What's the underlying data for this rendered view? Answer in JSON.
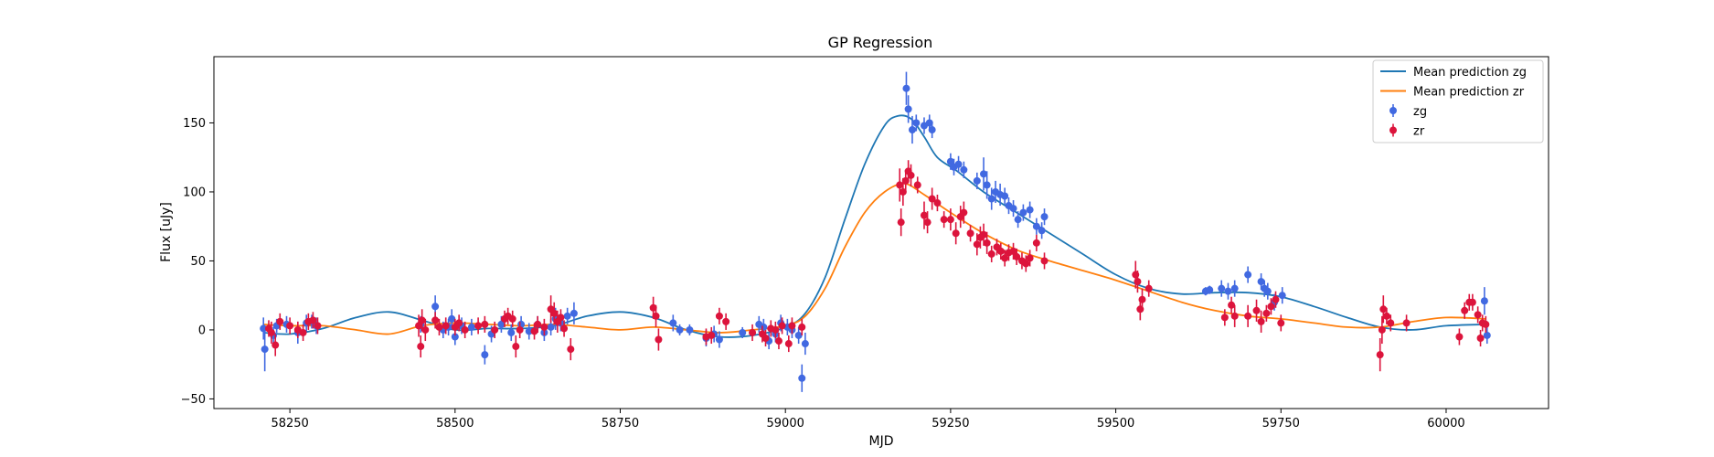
{
  "chart_data": {
    "type": "scatter",
    "title": "GP Regression",
    "xlabel": "MJD",
    "ylabel": "Flux [uJy]",
    "xlim": [
      58135,
      60155
    ],
    "ylim": [
      -57,
      198
    ],
    "xticks": [
      58250,
      58500,
      58750,
      59000,
      59250,
      59500,
      59750,
      60000
    ],
    "yticks": [
      -50,
      0,
      50,
      100,
      150
    ],
    "grid": false,
    "legend_position": "top-right",
    "legend": [
      "Mean prediction zg",
      "Mean prediction zr",
      "zg",
      "zr"
    ],
    "series": [
      {
        "name": "Mean prediction zg",
        "kind": "line",
        "color": "#1f77b4",
        "x": [
          58210,
          58250,
          58300,
          58350,
          58400,
          58450,
          58500,
          58550,
          58600,
          58650,
          58700,
          58750,
          58800,
          58850,
          58900,
          58950,
          59000,
          59030,
          59060,
          59090,
          59120,
          59150,
          59170,
          59190,
          59210,
          59230,
          59260,
          59300,
          59350,
          59400,
          59450,
          59500,
          59550,
          59600,
          59650,
          59700,
          59750,
          59800,
          59850,
          59900,
          59950,
          60000,
          60060
        ],
        "y": [
          -2,
          -3,
          1,
          9,
          13,
          7,
          0,
          1,
          1,
          3,
          10,
          13,
          9,
          0,
          -5,
          -4,
          2,
          12,
          38,
          80,
          120,
          148,
          155,
          153,
          140,
          125,
          115,
          100,
          85,
          70,
          55,
          40,
          30,
          26,
          27,
          27,
          24,
          17,
          9,
          2,
          0,
          3,
          4
        ]
      },
      {
        "name": "Mean prediction zr",
        "kind": "line",
        "color": "#ff7f0e",
        "x": [
          58210,
          58250,
          58300,
          58350,
          58400,
          58450,
          58500,
          58550,
          58600,
          58650,
          58700,
          58750,
          58800,
          58850,
          58900,
          58950,
          59000,
          59030,
          59060,
          59090,
          59120,
          59150,
          59180,
          59210,
          59250,
          59300,
          59350,
          59400,
          59450,
          59500,
          59550,
          59600,
          59650,
          59700,
          59750,
          59800,
          59850,
          59900,
          59950,
          60000,
          60060
        ],
        "y": [
          4,
          3,
          3,
          0,
          -3,
          3,
          5,
          4,
          3,
          4,
          2,
          0,
          2,
          0,
          -2,
          0,
          3,
          10,
          30,
          60,
          85,
          100,
          106,
          98,
          85,
          70,
          58,
          50,
          43,
          36,
          28,
          20,
          14,
          10,
          8,
          5,
          2,
          2,
          6,
          9,
          8
        ]
      },
      {
        "name": "zg",
        "kind": "errorbar",
        "color": "#4169e1",
        "x": [
          58210,
          58212,
          58225,
          58230,
          58245,
          58262,
          58275,
          58283,
          58290,
          58448,
          58470,
          58482,
          58490,
          58495,
          58500,
          58510,
          58525,
          58545,
          58555,
          58570,
          58585,
          58600,
          58612,
          58625,
          58635,
          58645,
          58652,
          58660,
          58670,
          58680,
          58830,
          58840,
          58855,
          58880,
          58892,
          58900,
          58935,
          58960,
          58967,
          58975,
          58985,
          58993,
          59003,
          59010,
          59020,
          59025,
          59030,
          59183,
          59186,
          59192,
          59198,
          59210,
          59218,
          59222,
          59250,
          59255,
          59262,
          59270,
          59290,
          59300,
          59305,
          59312,
          59318,
          59325,
          59332,
          59338,
          59345,
          59352,
          59360,
          59370,
          59380,
          59388,
          59392,
          59636,
          59642,
          59660,
          59670,
          59680,
          59700,
          59720,
          59725,
          59730,
          59740,
          59752,
          60058,
          60062
        ],
        "y": [
          1,
          -14,
          -4,
          3,
          4,
          -2,
          5,
          6,
          3,
          4,
          17,
          0,
          2,
          8,
          -5,
          3,
          2,
          -18,
          -3,
          4,
          -2,
          4,
          -1,
          4,
          -2,
          2,
          8,
          5,
          10,
          12,
          5,
          0,
          0,
          -6,
          -3,
          -7,
          -2,
          4,
          2,
          -8,
          -3,
          5,
          2,
          0,
          -4,
          -35,
          -10,
          175,
          160,
          145,
          150,
          148,
          150,
          145,
          122,
          118,
          120,
          116,
          108,
          113,
          105,
          95,
          100,
          98,
          97,
          90,
          88,
          80,
          85,
          87,
          75,
          72,
          82,
          28,
          29,
          30,
          28,
          30,
          40,
          35,
          30,
          28,
          20,
          25,
          21,
          -4
        ],
        "yerr": [
          8,
          16,
          6,
          5,
          6,
          8,
          6,
          5,
          6,
          6,
          8,
          6,
          6,
          7,
          6,
          6,
          6,
          7,
          6,
          6,
          6,
          6,
          6,
          6,
          6,
          6,
          8,
          6,
          6,
          8,
          6,
          4,
          4,
          6,
          6,
          6,
          4,
          6,
          6,
          6,
          6,
          6,
          6,
          6,
          6,
          10,
          8,
          12,
          10,
          10,
          6,
          6,
          6,
          6,
          6,
          6,
          6,
          6,
          6,
          12,
          10,
          8,
          8,
          8,
          6,
          6,
          6,
          6,
          6,
          6,
          6,
          6,
          6,
          3,
          3,
          6,
          6,
          6,
          6,
          6,
          6,
          6,
          6,
          6,
          10,
          6
        ]
      },
      {
        "name": "zr",
        "kind": "errorbar",
        "color": "#dc143c",
        "x": [
          58218,
          58222,
          58228,
          58235,
          58250,
          58262,
          58270,
          58278,
          58285,
          58292,
          58445,
          58448,
          58450,
          58455,
          58470,
          58476,
          58486,
          58500,
          58506,
          58515,
          58535,
          58545,
          58560,
          58575,
          58580,
          58587,
          58592,
          58598,
          58620,
          58625,
          58635,
          58645,
          58650,
          58655,
          58660,
          58665,
          58675,
          58800,
          58804,
          58808,
          58880,
          58888,
          58900,
          58910,
          58950,
          58965,
          58970,
          58978,
          58985,
          58990,
          58995,
          59005,
          59010,
          59025,
          59173,
          59175,
          59178,
          59182,
          59186,
          59190,
          59200,
          59210,
          59215,
          59222,
          59230,
          59240,
          59250,
          59258,
          59265,
          59270,
          59280,
          59290,
          59295,
          59300,
          59305,
          59312,
          59320,
          59326,
          59332,
          59338,
          59345,
          59350,
          59358,
          59364,
          59370,
          59380,
          59392,
          59530,
          59533,
          59537,
          59540,
          59550,
          59665,
          59675,
          59680,
          59700,
          59713,
          59720,
          59728,
          59735,
          59742,
          59750,
          59900,
          59903,
          59905,
          59910,
          59916,
          59940,
          60020,
          60028,
          60035,
          60040,
          60048,
          60052,
          60055,
          60060
        ],
        "y": [
          1,
          -2,
          -11,
          6,
          3,
          0,
          -2,
          6,
          7,
          3,
          3,
          -12,
          7,
          0,
          7,
          2,
          3,
          2,
          5,
          0,
          3,
          4,
          0,
          8,
          10,
          8,
          -12,
          0,
          -1,
          4,
          2,
          15,
          12,
          6,
          9,
          1,
          -14,
          16,
          10,
          -7,
          -5,
          -4,
          10,
          6,
          -2,
          -3,
          -6,
          1,
          0,
          -8,
          3,
          -10,
          3,
          2,
          105,
          78,
          100,
          108,
          115,
          112,
          105,
          83,
          78,
          95,
          92,
          80,
          80,
          70,
          82,
          85,
          70,
          62,
          67,
          69,
          63,
          55,
          60,
          57,
          52,
          56,
          57,
          53,
          50,
          48,
          52,
          63,
          50,
          40,
          35,
          15,
          22,
          30,
          9,
          18,
          10,
          10,
          14,
          6,
          12,
          17,
          22,
          5,
          -18,
          0,
          15,
          10,
          5,
          5,
          -5,
          14,
          20,
          20,
          11,
          -6,
          5,
          4
        ],
        "yerr": [
          6,
          8,
          8,
          6,
          6,
          6,
          6,
          6,
          6,
          6,
          8,
          8,
          8,
          8,
          6,
          6,
          6,
          6,
          6,
          6,
          6,
          6,
          6,
          6,
          6,
          6,
          8,
          6,
          6,
          6,
          6,
          10,
          8,
          8,
          6,
          6,
          8,
          8,
          8,
          8,
          6,
          6,
          6,
          6,
          6,
          6,
          6,
          6,
          6,
          6,
          6,
          6,
          6,
          6,
          12,
          10,
          10,
          8,
          8,
          8,
          6,
          10,
          8,
          8,
          6,
          6,
          8,
          8,
          8,
          8,
          6,
          8,
          8,
          8,
          8,
          6,
          6,
          6,
          6,
          6,
          6,
          6,
          6,
          6,
          6,
          6,
          6,
          10,
          8,
          8,
          8,
          6,
          6,
          6,
          8,
          8,
          8,
          8,
          6,
          6,
          6,
          6,
          12,
          10,
          10,
          6,
          6,
          6,
          6,
          6,
          6,
          6,
          6,
          6,
          6,
          6
        ]
      }
    ]
  }
}
